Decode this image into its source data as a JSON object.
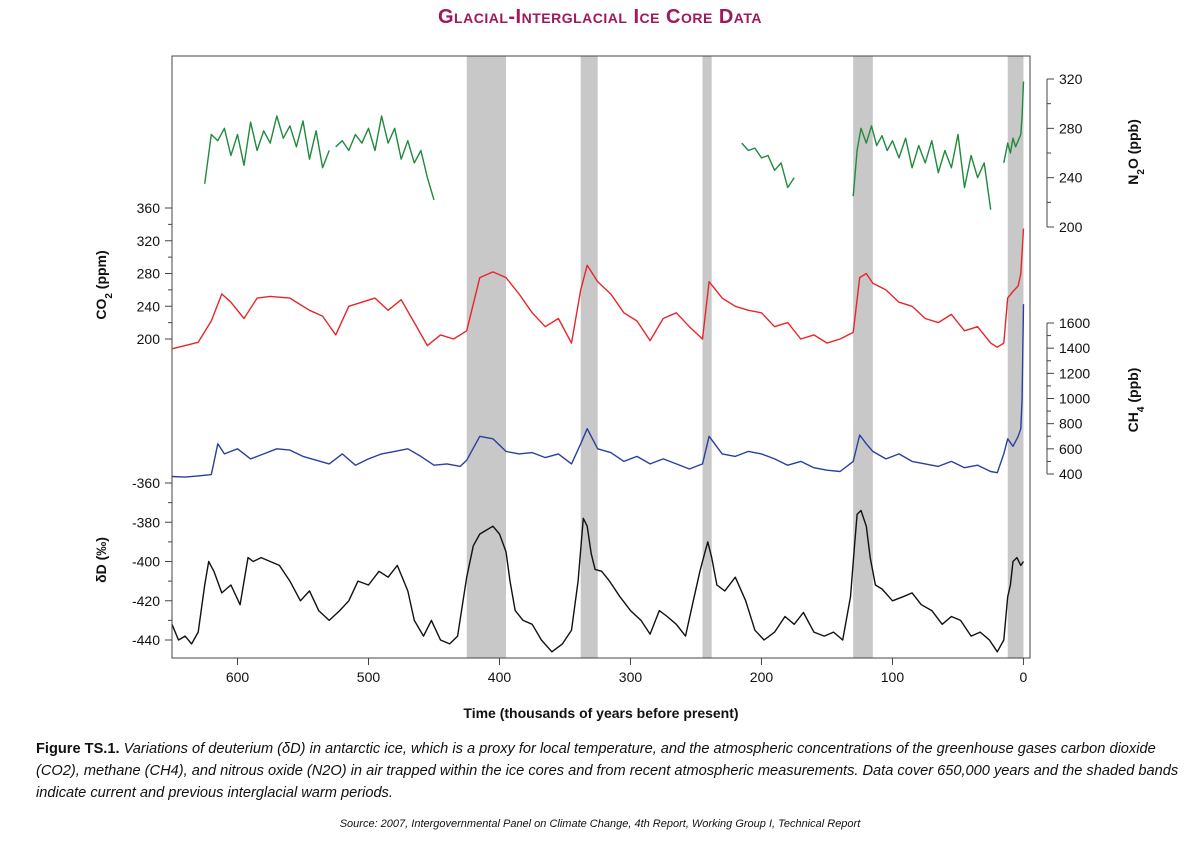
{
  "title": "Glacial-Interglacial Ice Core Data",
  "caption": {
    "lead": "Figure TS.1.",
    "body": "Variations of deuterium (δD) in antarctic ice, which is a proxy for local temperature, and the atmospheric concentrations of the greenhouse gases carbon dioxide (CO2), methane (CH4), and nitrous oxide (N2O) in air trapped within the ice cores and from recent atmospheric measurements. Data cover 650,000 years and the shaded bands indicate current and previous interglacial warm periods."
  },
  "source": "Source: 2007, Intergovernmental Panel on Climate Change, 4th Report, Working Group I, Technical Report",
  "colors": {
    "title": "#a0175a",
    "co2": "#e8262a",
    "ch4": "#2a3f9e",
    "n2o": "#1f8a3c",
    "dd": "#111111",
    "band": "#c8c8c8"
  },
  "chart_data": {
    "type": "line",
    "title": "Glacial-Interglacial Ice Core Data",
    "xlabel": "Time (thousands of years before present)",
    "xlim": [
      650,
      -5
    ],
    "x_ticks": [
      "600",
      "500",
      "400",
      "300",
      "200",
      "100",
      "0"
    ],
    "x_tick_values": [
      600,
      500,
      400,
      300,
      200,
      100,
      0
    ],
    "interglacial_bands": [
      [
        425,
        395
      ],
      [
        338,
        325
      ],
      [
        245,
        238
      ],
      [
        130,
        115
      ],
      [
        12,
        0
      ]
    ],
    "axes": {
      "co2": {
        "label": "CO2 (ppm)",
        "ticks": [
          "200",
          "240",
          "280",
          "320",
          "360"
        ],
        "ylim": [
          200,
          360
        ]
      },
      "n2o": {
        "label": "N2O (ppb)",
        "ticks": [
          "200",
          "240",
          "280",
          "320"
        ],
        "ylim": [
          200,
          320
        ]
      },
      "ch4": {
        "label": "CH4 (ppb)",
        "ticks": [
          "400",
          "600",
          "800",
          "1000",
          "1200",
          "1400",
          "1600"
        ],
        "ylim": [
          400,
          1600
        ]
      },
      "dd": {
        "label": "δD (‰)",
        "ticks": [
          "-360",
          "-380",
          "-400",
          "-420",
          "-440"
        ],
        "ylim": [
          -440,
          -360
        ]
      }
    },
    "series": [
      {
        "name": "N2O",
        "unit": "ppb",
        "segments": [
          {
            "x": [
              625,
              620,
              615,
              610,
              605,
              600,
              595,
              590,
              585,
              580,
              575,
              570,
              565,
              560,
              555,
              550,
              545,
              540,
              535,
              530
            ],
            "values": [
              235,
              275,
              270,
              280,
              258,
              275,
              250,
              285,
              262,
              278,
              268,
              290,
              272,
              282,
              265,
              286,
              255,
              278,
              248,
              262
            ]
          },
          {
            "x": [
              525,
              520,
              515,
              510,
              505,
              500,
              495,
              490,
              485,
              480,
              475,
              470,
              465,
              460,
              455,
              450
            ],
            "values": [
              265,
              270,
              262,
              275,
              268,
              280,
              262,
              290,
              268,
              280,
              255,
              270,
              252,
              262,
              240,
              222
            ]
          },
          {
            "x": [
              215,
              210,
              205,
              200,
              195,
              190,
              185,
              180,
              175
            ],
            "values": [
              268,
              262,
              264,
              256,
              258,
              246,
              252,
              232,
              240
            ]
          },
          {
            "x": [
              130,
              127,
              124,
              120,
              116,
              112,
              108,
              104,
              100,
              95,
              90,
              85,
              80,
              75,
              70,
              65,
              60,
              55,
              50,
              45,
              40,
              35,
              30,
              25
            ],
            "values": [
              225,
              262,
              280,
              268,
              282,
              266,
              274,
              262,
              270,
              256,
              272,
              248,
              266,
              252,
              270,
              244,
              262,
              248,
              275,
              232,
              258,
              240,
              252,
              214
            ]
          },
          {
            "x": [
              15,
              12,
              10,
              8,
              6,
              4,
              2,
              1,
              0
            ],
            "values": [
              252,
              268,
              260,
              272,
              265,
              270,
              275,
              290,
              318
            ]
          }
        ]
      },
      {
        "name": "CO2",
        "unit": "ppm",
        "x": [
          650,
          640,
          630,
          620,
          612,
          605,
          595,
          585,
          575,
          560,
          545,
          535,
          525,
          515,
          505,
          495,
          485,
          475,
          465,
          455,
          445,
          435,
          425,
          415,
          405,
          395,
          385,
          375,
          365,
          355,
          345,
          338,
          333,
          325,
          315,
          305,
          295,
          285,
          275,
          265,
          255,
          245,
          240,
          230,
          220,
          210,
          200,
          190,
          180,
          170,
          160,
          150,
          140,
          130,
          125,
          120,
          115,
          105,
          95,
          85,
          75,
          65,
          55,
          45,
          35,
          25,
          20,
          15,
          12,
          8,
          4,
          2,
          0
        ],
        "values": [
          188,
          192,
          196,
          222,
          255,
          245,
          225,
          250,
          252,
          250,
          235,
          228,
          205,
          240,
          245,
          250,
          235,
          248,
          220,
          192,
          205,
          200,
          210,
          275,
          282,
          275,
          255,
          232,
          215,
          225,
          195,
          260,
          290,
          270,
          255,
          232,
          222,
          198,
          225,
          232,
          215,
          200,
          270,
          250,
          240,
          235,
          232,
          215,
          220,
          200,
          205,
          195,
          200,
          208,
          275,
          280,
          268,
          260,
          245,
          240,
          225,
          220,
          230,
          210,
          215,
          195,
          190,
          195,
          250,
          258,
          265,
          280,
          335
        ]
      },
      {
        "name": "CH4",
        "unit": "ppb",
        "x": [
          650,
          640,
          630,
          620,
          615,
          610,
          600,
          590,
          580,
          570,
          560,
          550,
          540,
          530,
          520,
          510,
          500,
          490,
          480,
          470,
          460,
          450,
          440,
          430,
          425,
          415,
          405,
          395,
          385,
          375,
          365,
          355,
          345,
          338,
          333,
          325,
          315,
          305,
          295,
          285,
          275,
          265,
          255,
          245,
          240,
          230,
          220,
          210,
          200,
          190,
          180,
          170,
          160,
          150,
          140,
          130,
          125,
          120,
          115,
          105,
          95,
          85,
          75,
          65,
          55,
          45,
          35,
          25,
          20,
          15,
          12,
          8,
          4,
          2,
          1,
          0
        ],
        "values": [
          380,
          375,
          385,
          395,
          640,
          560,
          600,
          520,
          560,
          600,
          590,
          540,
          510,
          480,
          560,
          470,
          520,
          560,
          580,
          600,
          540,
          470,
          480,
          460,
          510,
          700,
          680,
          580,
          560,
          570,
          530,
          560,
          480,
          640,
          760,
          600,
          570,
          500,
          540,
          480,
          520,
          480,
          440,
          480,
          700,
          560,
          540,
          580,
          560,
          520,
          470,
          500,
          450,
          430,
          420,
          500,
          710,
          640,
          580,
          520,
          560,
          500,
          480,
          460,
          500,
          450,
          470,
          420,
          410,
          560,
          680,
          620,
          700,
          760,
          1000,
          1750
        ]
      },
      {
        "name": "δD",
        "unit": "‰",
        "x": [
          650,
          645,
          640,
          635,
          630,
          625,
          622,
          618,
          612,
          605,
          598,
          592,
          588,
          582,
          575,
          568,
          560,
          552,
          545,
          538,
          530,
          522,
          515,
          508,
          500,
          492,
          485,
          478,
          470,
          465,
          458,
          452,
          445,
          438,
          432,
          425,
          420,
          415,
          410,
          405,
          400,
          395,
          392,
          388,
          382,
          375,
          368,
          360,
          352,
          345,
          340,
          336,
          333,
          330,
          327,
          322,
          316,
          308,
          300,
          292,
          285,
          278,
          272,
          265,
          258,
          252,
          247,
          243,
          241,
          238,
          234,
          228,
          220,
          212,
          205,
          198,
          190,
          182,
          175,
          168,
          160,
          152,
          145,
          138,
          132,
          129,
          127,
          124,
          120,
          117,
          113,
          108,
          100,
          92,
          85,
          78,
          70,
          62,
          55,
          48,
          40,
          33,
          26,
          20,
          15,
          12,
          10,
          8,
          5,
          2,
          0
        ],
        "values": [
          -432,
          -440,
          -438,
          -442,
          -436,
          -412,
          -400,
          -405,
          -416,
          -412,
          -422,
          -398,
          -400,
          -398,
          -400,
          -402,
          -410,
          -420,
          -415,
          -425,
          -430,
          -425,
          -420,
          -410,
          -412,
          -405,
          -408,
          -402,
          -415,
          -430,
          -438,
          -430,
          -440,
          -442,
          -438,
          -408,
          -392,
          -386,
          -384,
          -382,
          -386,
          -395,
          -410,
          -425,
          -430,
          -432,
          -440,
          -446,
          -442,
          -435,
          -410,
          -378,
          -382,
          -396,
          -404,
          -405,
          -410,
          -418,
          -425,
          -430,
          -437,
          -425,
          -428,
          -432,
          -438,
          -420,
          -405,
          -395,
          -390,
          -398,
          -412,
          -415,
          -408,
          -420,
          -435,
          -440,
          -436,
          -428,
          -432,
          -426,
          -436,
          -438,
          -436,
          -440,
          -418,
          -392,
          -376,
          -374,
          -382,
          -398,
          -412,
          -414,
          -420,
          -418,
          -416,
          -422,
          -425,
          -432,
          -428,
          -430,
          -438,
          -436,
          -440,
          -446,
          -440,
          -418,
          -412,
          -400,
          -398,
          -402,
          -400
        ]
      }
    ]
  }
}
